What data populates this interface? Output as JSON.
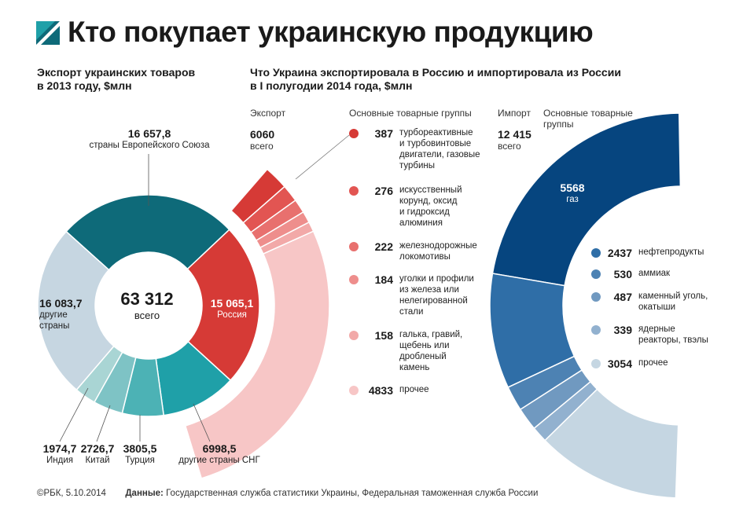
{
  "header": {
    "title": "Кто покупает украинскую продукцию"
  },
  "left": {
    "subtitle_line1": "Экспорт украинских товаров",
    "subtitle_line2": "в 2013 году, $млн",
    "total_value": "63 312",
    "total_label": "всего"
  },
  "middle": {
    "subtitle_line1": "Что Украина экспортировала в Россию и импортировала из России",
    "subtitle_line2": "в I полугодии 2014 года, $млн",
    "export_header": "Экспорт",
    "export_total": "6060",
    "export_total_label": "всего",
    "groups_header": "Основные товарные группы"
  },
  "right": {
    "import_header": "Импорт",
    "import_total": "12 415",
    "import_total_label": "всего",
    "groups_header_line1": "Основные товарные",
    "groups_header_line2": "группы"
  },
  "colors": {
    "eu": "#0e6a79",
    "russia": "#d63a36",
    "cis": "#1fa0a8",
    "turkey": "#4cb2b5",
    "china": "#7ec3c5",
    "india": "#a9d5d4",
    "others": "#c6d6e1",
    "export_items": [
      "#d63a36",
      "#e25552",
      "#e8706e",
      "#ee8e8c",
      "#f2a9a8",
      "#f7c6c6"
    ],
    "import_items": [
      "#06457f",
      "#2f6ea7",
      "#4d82b3",
      "#7099c0",
      "#92b1cf",
      "#c5d6e2"
    ]
  },
  "chart_data": [
    {
      "type": "pie",
      "title": "Экспорт украинских товаров в 2013 году, $млн",
      "total": 63312,
      "slices": [
        {
          "label_line1": "страны Европейского Союза",
          "label_line2": "",
          "value_text": "16 657,8",
          "value": 16657.8
        },
        {
          "label_line1": "Россия",
          "label_line2": "",
          "value_text": "15 065,1",
          "value": 15065.1
        },
        {
          "label_line1": "другие страны СНГ",
          "label_line2": "",
          "value_text": "6998,5",
          "value": 6998.5
        },
        {
          "label_line1": "Турция",
          "label_line2": "",
          "value_text": "3805,5",
          "value": 3805.5
        },
        {
          "label_line1": "Китай",
          "label_line2": "",
          "value_text": "2726,7",
          "value": 2726.7
        },
        {
          "label_line1": "Индия",
          "label_line2": "",
          "value_text": "1974,7",
          "value": 1974.7
        },
        {
          "label_line1": "другие",
          "label_line2": "страны",
          "value_text": "16 083,7",
          "value": 16083.7
        }
      ]
    },
    {
      "type": "pie",
      "title": "Экспорт в Россию, I полугодие 2014 года, $млн",
      "total": 6060,
      "items": [
        {
          "value_text": "387",
          "value": 387,
          "label": [
            "турбореактивные",
            "и турбовинтовые",
            "двигатели, газовые",
            "турбины"
          ]
        },
        {
          "value_text": "276",
          "value": 276,
          "label": [
            "искусственный",
            "корунд, оксид",
            "и гидроксид",
            "алюминия"
          ]
        },
        {
          "value_text": "222",
          "value": 222,
          "label": [
            "железнодорожные",
            "локомотивы"
          ]
        },
        {
          "value_text": "184",
          "value": 184,
          "label": [
            "уголки и профили",
            "из железа или",
            "нелегированной",
            "стали"
          ]
        },
        {
          "value_text": "158",
          "value": 158,
          "label": [
            "галька, гравий,",
            "щебень или",
            "дробленый",
            "камень"
          ]
        },
        {
          "value_text": "4833",
          "value": 4833,
          "label": [
            "прочее"
          ]
        }
      ]
    },
    {
      "type": "pie",
      "title": "Импорт из России, I полугодие 2014 года, $млн",
      "total": 12415,
      "items": [
        {
          "value_text": "5568",
          "value": 5568,
          "label": [
            "газ"
          ]
        },
        {
          "value_text": "2437",
          "value": 2437,
          "label": [
            "нефтепродукты"
          ]
        },
        {
          "value_text": "530",
          "value": 530,
          "label": [
            "аммиак"
          ]
        },
        {
          "value_text": "487",
          "value": 487,
          "label": [
            "каменный уголь,",
            "окатыши"
          ]
        },
        {
          "value_text": "339",
          "value": 339,
          "label": [
            "ядерные",
            "реакторы, твэлы"
          ]
        },
        {
          "value_text": "3054",
          "value": 3054,
          "label": [
            "прочее"
          ]
        }
      ]
    }
  ],
  "footer": {
    "copyright": "©РБК, 5.10.2014",
    "source_label": "Данные:",
    "source_text": "Государственная служба статистики Украины, Федеральная таможенная служба России"
  }
}
